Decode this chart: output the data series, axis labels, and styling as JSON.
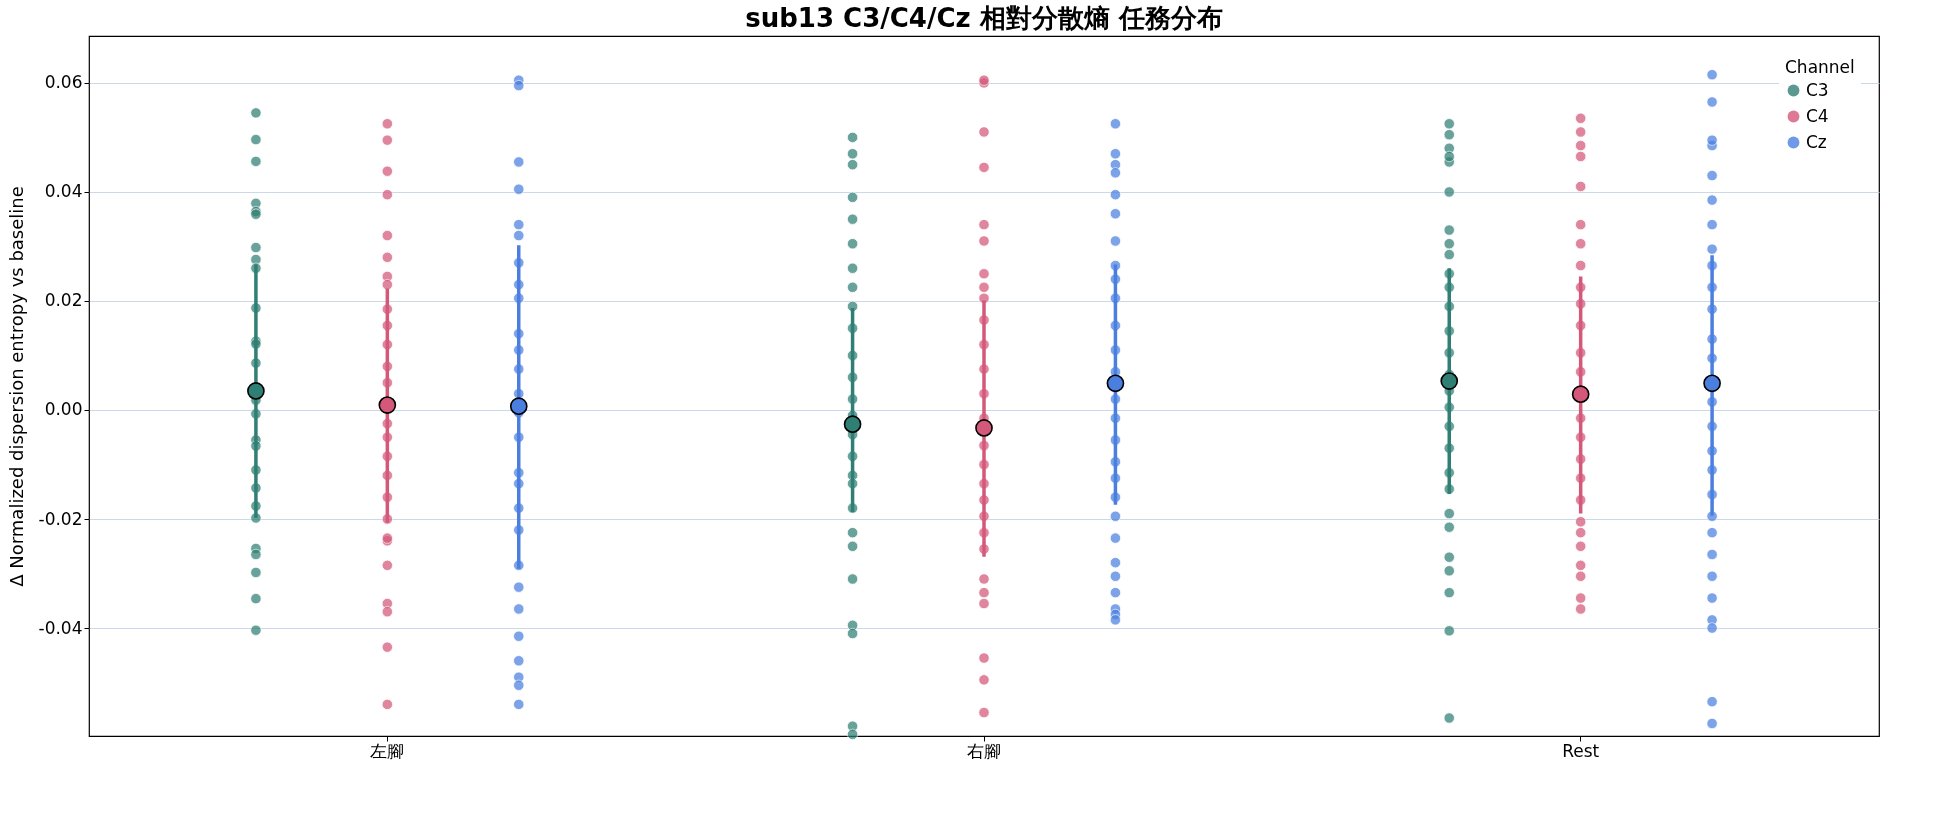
{
  "chart_data": {
    "type": "scatter",
    "title": "sub13 C3/C4/Cz 相對分散熵 任務分布",
    "ylabel": "Δ Normalized dispersion entropy vs baseline",
    "legend_title": "Channel",
    "legend": "top right",
    "grid": "y",
    "marker": "circle",
    "categories": [
      "左腳",
      "右腳",
      "Rest"
    ],
    "ylim": [
      -0.0598,
      0.0686
    ],
    "yticks": [
      0.06,
      0.04,
      0.02,
      {
        "value": 0,
        "label": "0.00"
      },
      -0.02,
      -0.04
    ],
    "series": [
      {
        "name": "C3",
        "color": "#2f7f74",
        "x": [
          "左腳",
          "左腳",
          "左腳",
          "左腳",
          "左腳",
          "左腳",
          "左腳",
          "左腳",
          "左腳",
          "左腳",
          "左腳",
          "左腳",
          "左腳",
          "左腳",
          "左腳",
          "左腳",
          "左腳",
          "左腳",
          "左腳",
          "左腳",
          "左腳",
          "左腳",
          "左腳",
          "左腳",
          "左腳",
          "左腳",
          "右腳",
          "右腳",
          "右腳",
          "右腳",
          "右腳",
          "右腳",
          "右腳",
          "右腳",
          "右腳",
          "右腳",
          "右腳",
          "右腳",
          "右腳",
          "右腳",
          "右腳",
          "右腳",
          "右腳",
          "右腳",
          "右腳",
          "右腳",
          "右腳",
          "右腳",
          "右腳",
          "右腳",
          "右腳",
          "右腳",
          "Rest",
          "Rest",
          "Rest",
          "Rest",
          "Rest",
          "Rest",
          "Rest",
          "Rest",
          "Rest",
          "Rest",
          "Rest",
          "Rest",
          "Rest",
          "Rest",
          "Rest",
          "Rest",
          "Rest",
          "Rest",
          "Rest",
          "Rest",
          "Rest",
          "Rest",
          "Rest",
          "Rest",
          "Rest",
          "Rest",
          "Rest",
          "Rest"
        ],
        "values": [
          0.0545,
          0.0496,
          0.0456,
          0.0379,
          0.0364,
          0.0359,
          0.0276,
          0.026,
          0.0298,
          0.0126,
          0.0187,
          0.0121,
          0.0086,
          0.0018,
          -0.0007,
          -0.0055,
          -0.0066,
          -0.011,
          -0.0143,
          -0.0176,
          -0.0198,
          -0.0254,
          -0.0265,
          -0.0298,
          -0.0346,
          -0.0404,
          0.05,
          0.047,
          0.045,
          0.039,
          0.035,
          0.0305,
          0.026,
          0.0225,
          0.019,
          0.015,
          0.01,
          0.006,
          0.002,
          -0.001,
          -0.0045,
          -0.0085,
          -0.012,
          -0.0135,
          -0.018,
          -0.0225,
          -0.025,
          -0.031,
          -0.0395,
          -0.041,
          -0.058,
          -0.0595,
          0.0525,
          0.0505,
          0.048,
          0.0455,
          0.0465,
          0.04,
          0.033,
          0.0305,
          0.0285,
          0.025,
          0.0225,
          0.019,
          0.0145,
          0.0105,
          0.0065,
          0.0035,
          0.0005,
          -0.003,
          -0.007,
          -0.0115,
          -0.0145,
          -0.019,
          -0.0215,
          -0.027,
          -0.0295,
          -0.0335,
          -0.0405,
          -0.0565
        ]
      },
      {
        "name": "C4",
        "color": "#d4587a",
        "x": [
          "左腳",
          "左腳",
          "左腳",
          "左腳",
          "左腳",
          "左腳",
          "左腳",
          "左腳",
          "左腳",
          "左腳",
          "左腳",
          "左腳",
          "左腳",
          "左腳",
          "左腳",
          "左腳",
          "左腳",
          "左腳",
          "左腳",
          "左腳",
          "左腳",
          "左腳",
          "左腳",
          "左腳",
          "左腳",
          "左腳",
          "右腳",
          "右腳",
          "右腳",
          "右腳",
          "右腳",
          "右腳",
          "右腳",
          "右腳",
          "右腳",
          "右腳",
          "右腳",
          "右腳",
          "右腳",
          "右腳",
          "右腳",
          "右腳",
          "右腳",
          "右腳",
          "右腳",
          "右腳",
          "右腳",
          "右腳",
          "右腳",
          "右腳",
          "右腳",
          "右腳",
          "右腳",
          "Rest",
          "Rest",
          "Rest",
          "Rest",
          "Rest",
          "Rest",
          "Rest",
          "Rest",
          "Rest",
          "Rest",
          "Rest",
          "Rest",
          "Rest",
          "Rest",
          "Rest",
          "Rest",
          "Rest",
          "Rest",
          "Rest",
          "Rest",
          "Rest",
          "Rest",
          "Rest",
          "Rest",
          "Rest"
        ],
        "values": [
          0.0525,
          0.0495,
          0.0438,
          0.0395,
          0.032,
          0.028,
          0.0245,
          0.023,
          0.0185,
          0.0155,
          0.012,
          0.008,
          0.005,
          -0.0025,
          -0.005,
          -0.0085,
          -0.012,
          -0.016,
          -0.02,
          -0.024,
          -0.0235,
          -0.0285,
          -0.0355,
          -0.037,
          -0.0435,
          -0.054,
          0.06,
          0.0605,
          0.051,
          0.0445,
          0.034,
          0.031,
          0.025,
          0.0225,
          0.0205,
          0.0165,
          0.012,
          0.0075,
          0.003,
          -0.0015,
          -0.0065,
          -0.01,
          -0.0135,
          -0.0165,
          -0.0195,
          -0.0225,
          -0.0255,
          -0.031,
          -0.0335,
          -0.0355,
          -0.0455,
          -0.0495,
          -0.0555,
          0.0535,
          0.051,
          0.0485,
          0.0465,
          0.041,
          0.034,
          0.0305,
          0.0265,
          0.0225,
          0.0195,
          0.0155,
          0.0105,
          0.007,
          -0.0015,
          -0.005,
          -0.009,
          -0.0125,
          -0.0165,
          -0.0205,
          -0.0225,
          -0.025,
          -0.0285,
          -0.0305,
          -0.0345,
          -0.0365
        ]
      },
      {
        "name": "Cz",
        "color": "#4a7fe0",
        "x": [
          "左腳",
          "左腳",
          "左腳",
          "左腳",
          "左腳",
          "左腳",
          "左腳",
          "左腳",
          "左腳",
          "左腳",
          "左腳",
          "左腳",
          "左腳",
          "左腳",
          "左腳",
          "左腳",
          "左腳",
          "左腳",
          "左腳",
          "左腳",
          "左腳",
          "左腳",
          "左腳",
          "左腳",
          "左腳",
          "左腳",
          "左腳",
          "右腳",
          "右腳",
          "右腳",
          "右腳",
          "右腳",
          "右腳",
          "右腳",
          "右腳",
          "右腳",
          "右腳",
          "右腳",
          "右腳",
          "右腳",
          "右腳",
          "右腳",
          "右腳",
          "右腳",
          "右腳",
          "右腳",
          "右腳",
          "右腳",
          "右腳",
          "右腳",
          "右腳",
          "右腳",
          "右腳",
          "右腳",
          "Rest",
          "Rest",
          "Rest",
          "Rest",
          "Rest",
          "Rest",
          "Rest",
          "Rest",
          "Rest",
          "Rest",
          "Rest",
          "Rest",
          "Rest",
          "Rest",
          "Rest",
          "Rest",
          "Rest",
          "Rest",
          "Rest",
          "Rest",
          "Rest",
          "Rest",
          "Rest",
          "Rest",
          "Rest",
          "Rest",
          "Rest"
        ],
        "values": [
          0.0605,
          0.0595,
          0.0455,
          0.0405,
          0.034,
          0.032,
          0.027,
          0.023,
          0.0205,
          0.014,
          0.011,
          0.0075,
          0.003,
          -0.0005,
          -0.005,
          -0.0115,
          -0.0135,
          -0.018,
          -0.022,
          -0.0285,
          -0.0325,
          -0.0365,
          -0.0415,
          -0.046,
          -0.049,
          -0.0505,
          -0.054,
          0.0525,
          0.047,
          0.045,
          0.0435,
          0.0395,
          0.036,
          0.031,
          0.0265,
          0.024,
          0.0205,
          0.0155,
          0.011,
          0.007,
          0.002,
          -0.0015,
          -0.0055,
          -0.0095,
          -0.0125,
          -0.016,
          -0.0195,
          -0.0235,
          -0.028,
          -0.0305,
          -0.0335,
          -0.0365,
          -0.0375,
          -0.0385,
          0.0615,
          0.0565,
          0.0485,
          0.0495,
          0.043,
          0.0385,
          0.034,
          0.0295,
          0.0265,
          0.0225,
          0.0185,
          0.013,
          0.0095,
          0.0015,
          -0.003,
          -0.0075,
          -0.011,
          -0.0155,
          -0.0195,
          -0.0225,
          -0.0265,
          -0.0305,
          -0.0345,
          -0.0385,
          -0.04,
          -0.0535,
          -0.0575
        ]
      },
      {
        "color": "#2f7f74",
        "values": [
          0.0035,
          -0.0026,
          0.0053
        ],
        "errors": [
          [
            -0.0198,
            0.0267
          ],
          [
            -0.0187,
            0.0187
          ],
          [
            -0.0154,
            0.026
          ]
        ]
      },
      {
        "color": "#d4587a",
        "values": [
          0.0009,
          -0.0033,
          0.0029
        ],
        "errors": [
          [
            -0.0207,
            0.0223
          ],
          [
            -0.0269,
            0.0201
          ],
          [
            -0.019,
            0.0245
          ]
        ]
      },
      {
        "color": "#4a7fe0",
        "values": [
          0.0007,
          0.0049,
          0.0049
        ],
        "errors": [
          [
            -0.0291,
            0.0302
          ],
          [
            -0.0174,
            0.0267
          ],
          [
            -0.0194,
            0.0284
          ]
        ]
      }
    ]
  }
}
